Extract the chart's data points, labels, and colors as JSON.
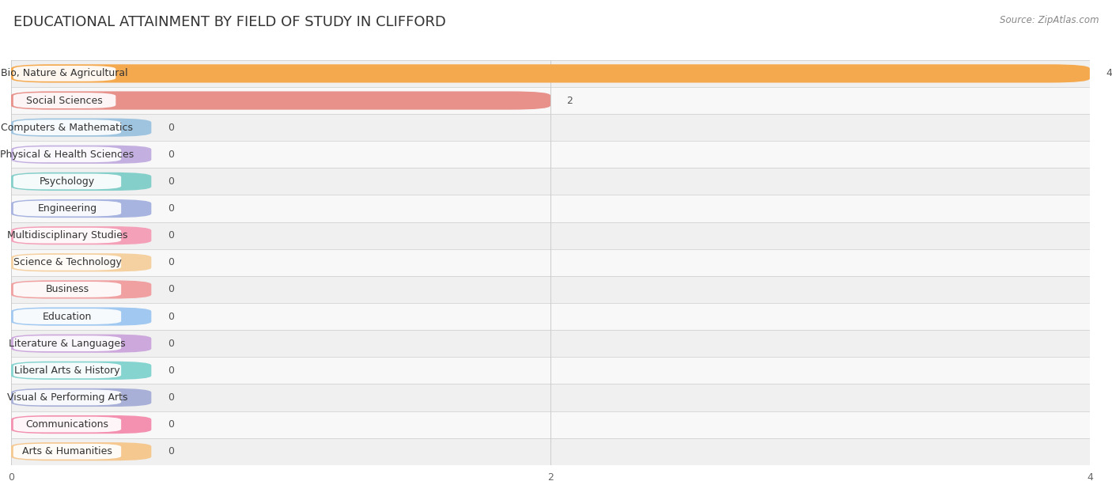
{
  "title": "EDUCATIONAL ATTAINMENT BY FIELD OF STUDY IN CLIFFORD",
  "source": "Source: ZipAtlas.com",
  "categories": [
    "Bio, Nature & Agricultural",
    "Social Sciences",
    "Computers & Mathematics",
    "Physical & Health Sciences",
    "Psychology",
    "Engineering",
    "Multidisciplinary Studies",
    "Science & Technology",
    "Business",
    "Education",
    "Literature & Languages",
    "Liberal Arts & History",
    "Visual & Performing Arts",
    "Communications",
    "Arts & Humanities"
  ],
  "values": [
    4,
    2,
    0,
    0,
    0,
    0,
    0,
    0,
    0,
    0,
    0,
    0,
    0,
    0,
    0
  ],
  "bar_colors": [
    "#F5A94E",
    "#E8908A",
    "#9EC4E0",
    "#C4B0E0",
    "#85CFCA",
    "#A8B4E0",
    "#F4A0B8",
    "#F5D0A0",
    "#F0A0A0",
    "#A0C8F0",
    "#CCA8DC",
    "#85D4D0",
    "#A8B0D8",
    "#F490B0",
    "#F5C890"
  ],
  "xlim": [
    0,
    4
  ],
  "xticks": [
    0,
    2,
    4
  ],
  "background_color": "#f5f5f5",
  "bar_bg_color": "#e8e8e8",
  "row_bg_colors": [
    "#f0f0f0",
    "#f8f8f8"
  ],
  "title_fontsize": 13,
  "label_fontsize": 9,
  "value_fontsize": 9,
  "zero_bar_width": 0.52
}
